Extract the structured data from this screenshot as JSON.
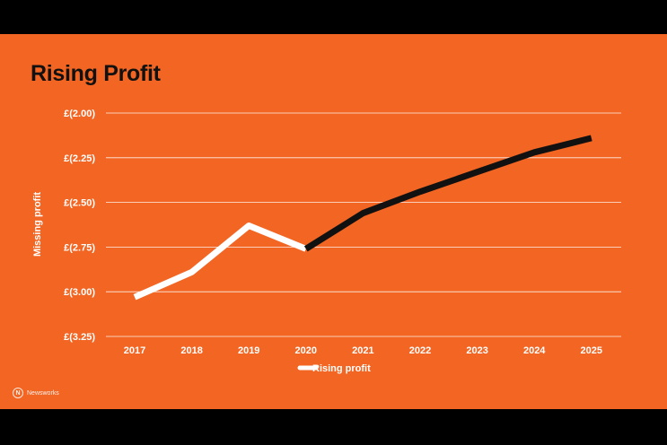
{
  "colors": {
    "background": "#f26522",
    "frame": "#000000",
    "actual_line": "#ffffff",
    "forecast_line": "#111111",
    "gridline": "#ffffff",
    "text": "#ffffff",
    "title": "#111111"
  },
  "logo": {
    "mark": "N",
    "text": "Newsworks"
  },
  "chart_data": {
    "type": "line",
    "title": "Rising Profit",
    "ylabel": "Missing profit",
    "xlabel": "",
    "categories": [
      "2017",
      "2018",
      "2019",
      "2020",
      "2021",
      "2022",
      "2023",
      "2024",
      "2025"
    ],
    "y_ticks": [
      -2.0,
      -2.25,
      -2.5,
      -2.75,
      -3.0,
      -3.25
    ],
    "y_tick_labels": [
      "£(2.00)",
      "£(2.25)",
      "£(2.50)",
      "£(2.75)",
      "£(3.00)",
      "£(3.25)"
    ],
    "ylim": [
      -3.25,
      -2.0
    ],
    "grid": true,
    "legend_position": "bottom",
    "series": [
      {
        "name": "Rising profit",
        "color": "#ffffff",
        "values": [
          -3.03,
          -2.89,
          -2.63,
          -2.76,
          null,
          null,
          null,
          null,
          null
        ]
      },
      {
        "color": "#111111",
        "values": [
          null,
          null,
          null,
          -2.76,
          -2.56,
          -2.44,
          -2.33,
          -2.22,
          -2.14
        ]
      }
    ]
  }
}
